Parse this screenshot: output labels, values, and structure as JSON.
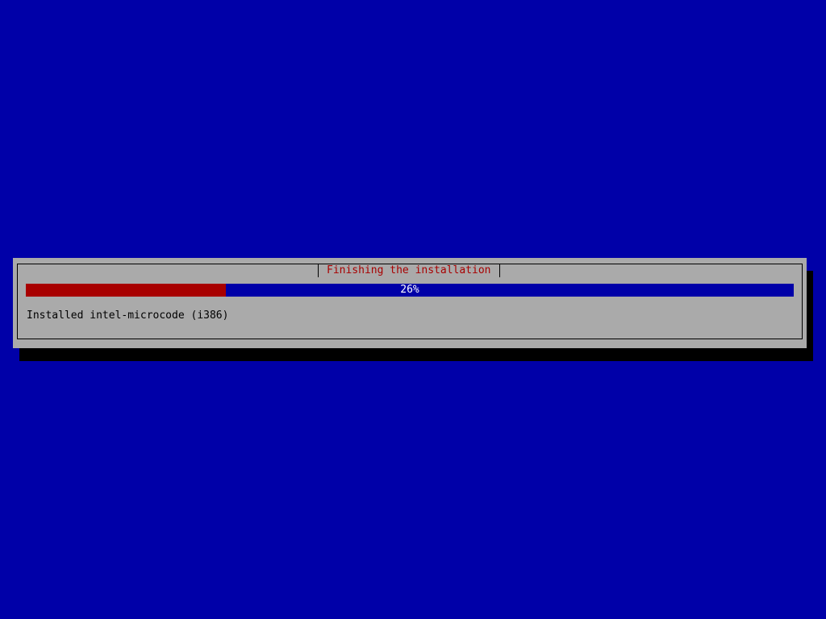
{
  "dialog": {
    "title": "Finishing the installation",
    "progress_percent": 26,
    "progress_label": "26%",
    "status": "Installed intel-microcode (i386)"
  },
  "colors": {
    "background": "#0000a8",
    "dialog": "#aaaaaa",
    "progress_fill": "#a80000",
    "title_text": "#a80000"
  }
}
